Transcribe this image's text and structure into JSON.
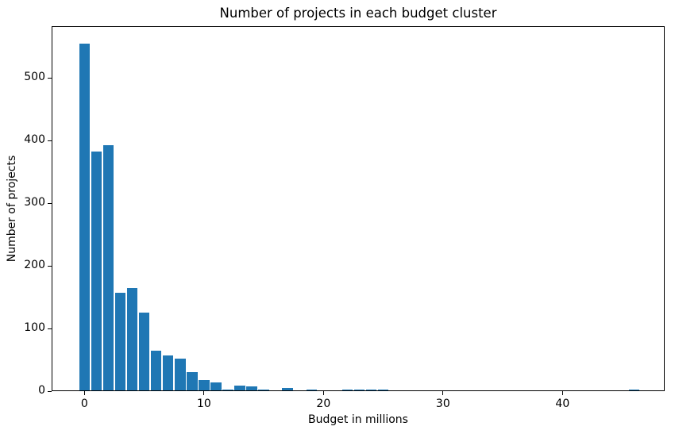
{
  "chart_data": {
    "type": "bar",
    "title": "Number of projects in each budget cluster",
    "xlabel": "Budget in millions",
    "ylabel": "Number of projects",
    "x": [
      0,
      1,
      2,
      3,
      4,
      5,
      6,
      7,
      8,
      9,
      10,
      11,
      12,
      13,
      14,
      15,
      16,
      17,
      18,
      19,
      20,
      21,
      22,
      23,
      24,
      25,
      26,
      27,
      28,
      29,
      30,
      31,
      32,
      33,
      34,
      35,
      36,
      37,
      38,
      39,
      40,
      41,
      42,
      43,
      44,
      45,
      46
    ],
    "values": [
      555,
      383,
      393,
      157,
      165,
      125,
      65,
      57,
      52,
      31,
      18,
      14,
      3,
      9,
      8,
      2,
      1,
      5,
      0,
      3,
      0,
      0,
      3,
      2,
      3,
      3,
      0,
      0,
      0,
      0,
      0,
      0,
      0,
      0,
      0,
      0,
      0,
      0,
      0,
      0,
      0,
      0,
      0,
      0,
      0,
      0,
      2
    ],
    "bar_width": 0.9,
    "xticks": [
      0,
      10,
      20,
      30,
      40
    ],
    "yticks": [
      0,
      100,
      200,
      300,
      400,
      500
    ],
    "xlim": [
      -2.75,
      48.55
    ],
    "ylim": [
      0,
      582.75
    ],
    "bar_color": "#1f77b4",
    "axis_color": "#000000",
    "background": "#ffffff",
    "grid": false
  }
}
